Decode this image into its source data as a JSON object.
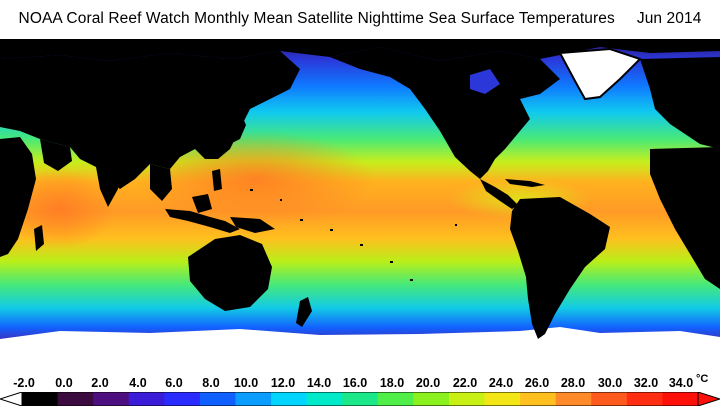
{
  "header": {
    "title": "NOAA Coral Reef Watch Monthly Mean Satellite Nighttime Sea Surface Temperatures",
    "date": "Jun 2014"
  },
  "colorbar": {
    "tick_labels": [
      "-2.0",
      "0.0",
      "2.0",
      "4.0",
      "6.0",
      "8.0",
      "10.0",
      "12.0",
      "14.0",
      "16.0",
      "18.0",
      "20.0",
      "22.0",
      "24.0",
      "26.0",
      "28.0",
      "30.0",
      "32.0",
      "34.0"
    ],
    "unit": "°C",
    "colors": [
      "#000000",
      "#3b0a3e",
      "#4d0e80",
      "#3a1bd8",
      "#2a2cff",
      "#1060ff",
      "#0a9cff",
      "#00d4ff",
      "#00e9c8",
      "#1be888",
      "#4fee48",
      "#8af01e",
      "#c8f015",
      "#f2e617",
      "#ffbf1e",
      "#ff8a2a",
      "#ff5a1e",
      "#ff2e12",
      "#ff0f0a"
    ]
  }
}
